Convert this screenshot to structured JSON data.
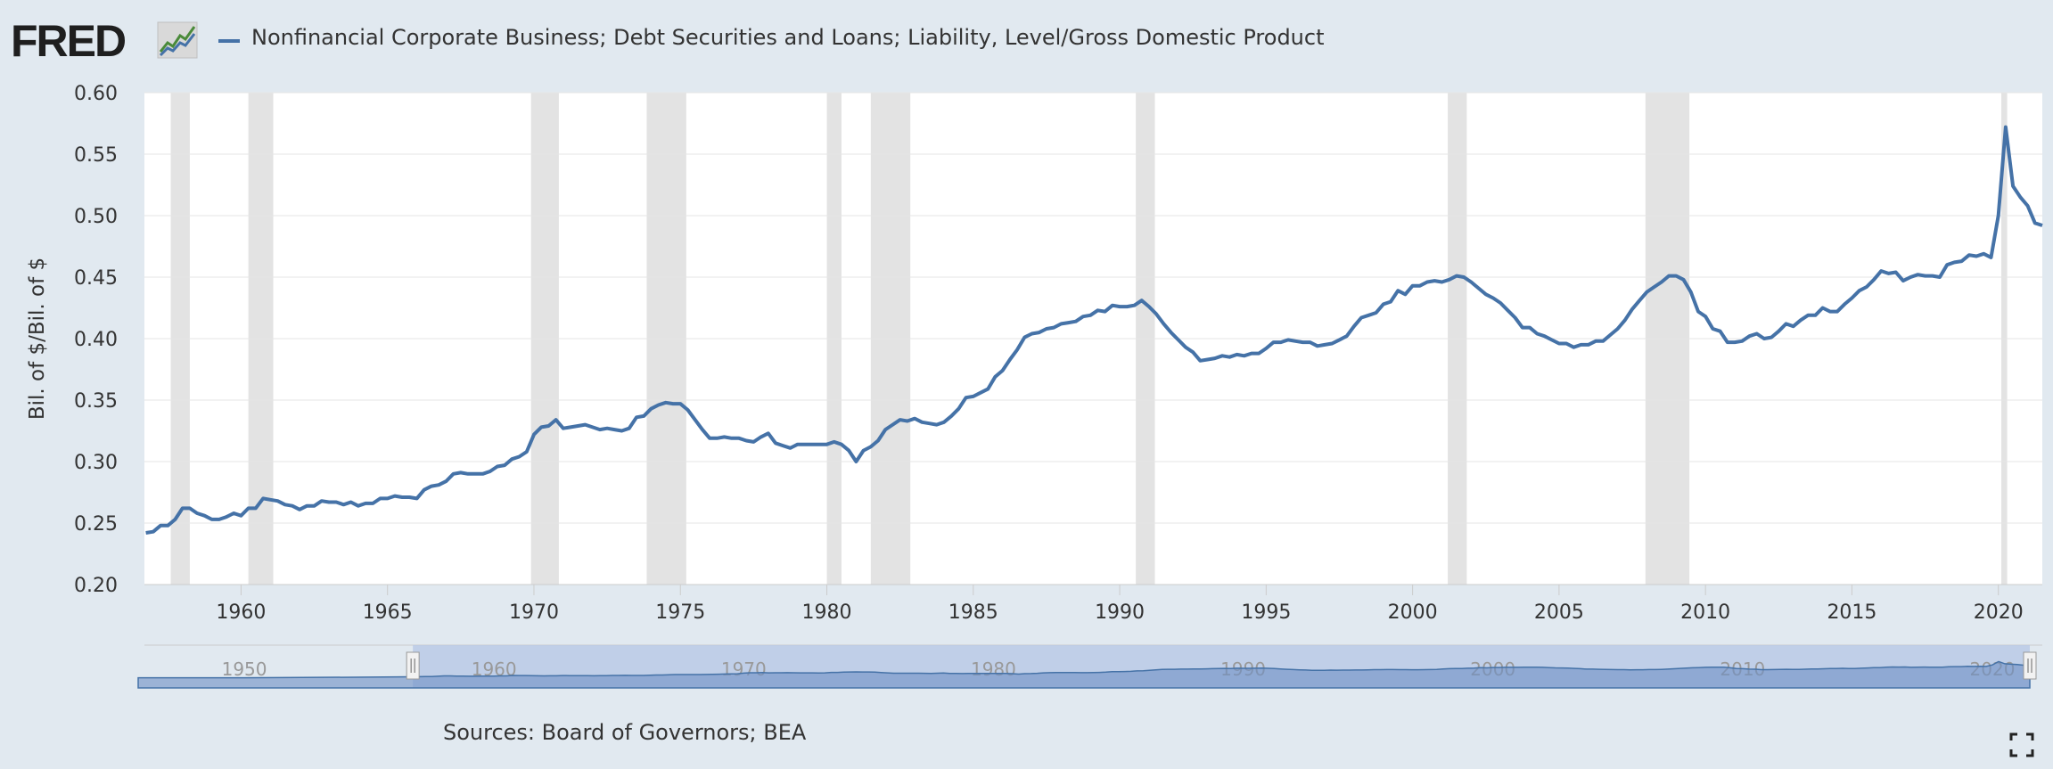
{
  "header": {
    "logo_text": "FRED",
    "series_title": "Nonfinancial Corporate Business; Debt Securities and Loans; Liability, Level/Gross Domestic Product"
  },
  "footer": {
    "sources": "Sources: Board of Governors; BEA"
  },
  "colors": {
    "line": "#4572a7",
    "recession": "#e3e3e3",
    "grid": "#e6e6e6",
    "navigator_fill": "#b8c8e6",
    "background": "#e1e9f0"
  },
  "chart_data": {
    "type": "line",
    "title": "",
    "xlabel": "",
    "ylabel": "Bil. of $/Bil. of $",
    "xlim": [
      1956.7,
      2021.5
    ],
    "ylim": [
      0.2,
      0.6
    ],
    "y_ticks": [
      "0.20",
      "0.25",
      "0.30",
      "0.35",
      "0.40",
      "0.45",
      "0.50",
      "0.55",
      "0.60"
    ],
    "x_ticks": [
      "1960",
      "1965",
      "1970",
      "1975",
      "1980",
      "1985",
      "1990",
      "1995",
      "2000",
      "2005",
      "2010",
      "2015",
      "2020"
    ],
    "grid": true,
    "legend": "top-left",
    "recessions": [
      [
        1957.6,
        1958.25
      ],
      [
        1960.25,
        1961.1
      ],
      [
        1969.9,
        1970.85
      ],
      [
        1973.85,
        1975.2
      ],
      [
        1980.0,
        1980.5
      ],
      [
        1981.5,
        1982.85
      ],
      [
        1990.55,
        1991.2
      ],
      [
        2001.2,
        2001.85
      ],
      [
        2007.95,
        2009.45
      ],
      [
        2020.1,
        2020.3
      ]
    ],
    "series": [
      {
        "name": "Nonfinancial Corporate Business; Debt Securities and Loans; Liability, Level/Gross Domestic Product",
        "points": [
          [
            1956.75,
            0.242
          ],
          [
            1957.0,
            0.243
          ],
          [
            1957.25,
            0.248
          ],
          [
            1957.5,
            0.248
          ],
          [
            1957.75,
            0.253
          ],
          [
            1958.0,
            0.262
          ],
          [
            1958.25,
            0.262
          ],
          [
            1958.5,
            0.258
          ],
          [
            1958.75,
            0.256
          ],
          [
            1959.0,
            0.253
          ],
          [
            1959.25,
            0.253
          ],
          [
            1959.5,
            0.255
          ],
          [
            1959.75,
            0.258
          ],
          [
            1960.0,
            0.256
          ],
          [
            1960.25,
            0.262
          ],
          [
            1960.5,
            0.262
          ],
          [
            1960.75,
            0.27
          ],
          [
            1961.0,
            0.269
          ],
          [
            1961.25,
            0.268
          ],
          [
            1961.5,
            0.265
          ],
          [
            1961.75,
            0.264
          ],
          [
            1962.0,
            0.261
          ],
          [
            1962.25,
            0.264
          ],
          [
            1962.5,
            0.264
          ],
          [
            1962.75,
            0.268
          ],
          [
            1963.0,
            0.267
          ],
          [
            1963.25,
            0.267
          ],
          [
            1963.5,
            0.265
          ],
          [
            1963.75,
            0.267
          ],
          [
            1964.0,
            0.264
          ],
          [
            1964.25,
            0.266
          ],
          [
            1964.5,
            0.266
          ],
          [
            1964.75,
            0.27
          ],
          [
            1965.0,
            0.27
          ],
          [
            1965.25,
            0.272
          ],
          [
            1965.5,
            0.271
          ],
          [
            1965.75,
            0.271
          ],
          [
            1966.0,
            0.27
          ],
          [
            1966.25,
            0.277
          ],
          [
            1966.5,
            0.28
          ],
          [
            1966.75,
            0.281
          ],
          [
            1967.0,
            0.284
          ],
          [
            1967.25,
            0.29
          ],
          [
            1967.5,
            0.291
          ],
          [
            1967.75,
            0.29
          ],
          [
            1968.0,
            0.29
          ],
          [
            1968.25,
            0.29
          ],
          [
            1968.5,
            0.292
          ],
          [
            1968.75,
            0.296
          ],
          [
            1969.0,
            0.297
          ],
          [
            1969.25,
            0.302
          ],
          [
            1969.5,
            0.304
          ],
          [
            1969.75,
            0.308
          ],
          [
            1970.0,
            0.322
          ],
          [
            1970.25,
            0.328
          ],
          [
            1970.5,
            0.329
          ],
          [
            1970.75,
            0.334
          ],
          [
            1971.0,
            0.327
          ],
          [
            1971.25,
            0.328
          ],
          [
            1971.5,
            0.329
          ],
          [
            1971.75,
            0.33
          ],
          [
            1972.0,
            0.328
          ],
          [
            1972.25,
            0.326
          ],
          [
            1972.5,
            0.327
          ],
          [
            1972.75,
            0.326
          ],
          [
            1973.0,
            0.325
          ],
          [
            1973.25,
            0.327
          ],
          [
            1973.5,
            0.336
          ],
          [
            1973.75,
            0.337
          ],
          [
            1974.0,
            0.343
          ],
          [
            1974.25,
            0.346
          ],
          [
            1974.5,
            0.348
          ],
          [
            1974.75,
            0.347
          ],
          [
            1975.0,
            0.347
          ],
          [
            1975.25,
            0.342
          ],
          [
            1975.5,
            0.334
          ],
          [
            1975.75,
            0.326
          ],
          [
            1976.0,
            0.319
          ],
          [
            1976.25,
            0.319
          ],
          [
            1976.5,
            0.32
          ],
          [
            1976.75,
            0.319
          ],
          [
            1977.0,
            0.319
          ],
          [
            1977.25,
            0.317
          ],
          [
            1977.5,
            0.316
          ],
          [
            1977.75,
            0.32
          ],
          [
            1978.0,
            0.323
          ],
          [
            1978.25,
            0.315
          ],
          [
            1978.5,
            0.313
          ],
          [
            1978.75,
            0.311
          ],
          [
            1979.0,
            0.314
          ],
          [
            1979.25,
            0.314
          ],
          [
            1979.5,
            0.314
          ],
          [
            1979.75,
            0.314
          ],
          [
            1980.0,
            0.314
          ],
          [
            1980.25,
            0.316
          ],
          [
            1980.5,
            0.314
          ],
          [
            1980.75,
            0.309
          ],
          [
            1981.0,
            0.3
          ],
          [
            1981.25,
            0.309
          ],
          [
            1981.5,
            0.312
          ],
          [
            1981.75,
            0.317
          ],
          [
            1982.0,
            0.326
          ],
          [
            1982.25,
            0.33
          ],
          [
            1982.5,
            0.334
          ],
          [
            1982.75,
            0.333
          ],
          [
            1983.0,
            0.335
          ],
          [
            1983.25,
            0.332
          ],
          [
            1983.5,
            0.331
          ],
          [
            1983.75,
            0.33
          ],
          [
            1984.0,
            0.332
          ],
          [
            1984.25,
            0.337
          ],
          [
            1984.5,
            0.343
          ],
          [
            1984.75,
            0.352
          ],
          [
            1985.0,
            0.353
          ],
          [
            1985.25,
            0.356
          ],
          [
            1985.5,
            0.359
          ],
          [
            1985.75,
            0.369
          ],
          [
            1986.0,
            0.374
          ],
          [
            1986.25,
            0.383
          ],
          [
            1986.5,
            0.391
          ],
          [
            1986.75,
            0.401
          ],
          [
            1987.0,
            0.404
          ],
          [
            1987.25,
            0.405
          ],
          [
            1987.5,
            0.408
          ],
          [
            1987.75,
            0.409
          ],
          [
            1988.0,
            0.412
          ],
          [
            1988.25,
            0.413
          ],
          [
            1988.5,
            0.414
          ],
          [
            1988.75,
            0.418
          ],
          [
            1989.0,
            0.419
          ],
          [
            1989.25,
            0.423
          ],
          [
            1989.5,
            0.422
          ],
          [
            1989.75,
            0.427
          ],
          [
            1990.0,
            0.426
          ],
          [
            1990.25,
            0.426
          ],
          [
            1990.5,
            0.427
          ],
          [
            1990.75,
            0.431
          ],
          [
            1991.0,
            0.426
          ],
          [
            1991.25,
            0.42
          ],
          [
            1991.5,
            0.412
          ],
          [
            1991.75,
            0.405
          ],
          [
            1992.0,
            0.399
          ],
          [
            1992.25,
            0.393
          ],
          [
            1992.5,
            0.389
          ],
          [
            1992.75,
            0.382
          ],
          [
            1993.0,
            0.383
          ],
          [
            1993.25,
            0.384
          ],
          [
            1993.5,
            0.386
          ],
          [
            1993.75,
            0.385
          ],
          [
            1994.0,
            0.387
          ],
          [
            1994.25,
            0.386
          ],
          [
            1994.5,
            0.388
          ],
          [
            1994.75,
            0.388
          ],
          [
            1995.0,
            0.392
          ],
          [
            1995.25,
            0.397
          ],
          [
            1995.5,
            0.397
          ],
          [
            1995.75,
            0.399
          ],
          [
            1996.0,
            0.398
          ],
          [
            1996.25,
            0.397
          ],
          [
            1996.5,
            0.397
          ],
          [
            1996.75,
            0.394
          ],
          [
            1997.0,
            0.395
          ],
          [
            1997.25,
            0.396
          ],
          [
            1997.5,
            0.399
          ],
          [
            1997.75,
            0.402
          ],
          [
            1998.0,
            0.41
          ],
          [
            1998.25,
            0.417
          ],
          [
            1998.5,
            0.419
          ],
          [
            1998.75,
            0.421
          ],
          [
            1999.0,
            0.428
          ],
          [
            1999.25,
            0.43
          ],
          [
            1999.5,
            0.439
          ],
          [
            1999.75,
            0.436
          ],
          [
            2000.0,
            0.443
          ],
          [
            2000.25,
            0.443
          ],
          [
            2000.5,
            0.446
          ],
          [
            2000.75,
            0.447
          ],
          [
            2001.0,
            0.446
          ],
          [
            2001.25,
            0.448
          ],
          [
            2001.5,
            0.451
          ],
          [
            2001.75,
            0.45
          ],
          [
            2002.0,
            0.446
          ],
          [
            2002.25,
            0.441
          ],
          [
            2002.5,
            0.436
          ],
          [
            2002.75,
            0.433
          ],
          [
            2003.0,
            0.429
          ],
          [
            2003.25,
            0.423
          ],
          [
            2003.5,
            0.417
          ],
          [
            2003.75,
            0.409
          ],
          [
            2004.0,
            0.409
          ],
          [
            2004.25,
            0.404
          ],
          [
            2004.5,
            0.402
          ],
          [
            2004.75,
            0.399
          ],
          [
            2005.0,
            0.396
          ],
          [
            2005.25,
            0.396
          ],
          [
            2005.5,
            0.393
          ],
          [
            2005.75,
            0.395
          ],
          [
            2006.0,
            0.395
          ],
          [
            2006.25,
            0.398
          ],
          [
            2006.5,
            0.398
          ],
          [
            2006.75,
            0.403
          ],
          [
            2007.0,
            0.408
          ],
          [
            2007.25,
            0.415
          ],
          [
            2007.5,
            0.424
          ],
          [
            2007.75,
            0.431
          ],
          [
            2008.0,
            0.438
          ],
          [
            2008.25,
            0.442
          ],
          [
            2008.5,
            0.446
          ],
          [
            2008.75,
            0.451
          ],
          [
            2009.0,
            0.451
          ],
          [
            2009.25,
            0.448
          ],
          [
            2009.5,
            0.438
          ],
          [
            2009.75,
            0.422
          ],
          [
            2010.0,
            0.418
          ],
          [
            2010.25,
            0.408
          ],
          [
            2010.5,
            0.406
          ],
          [
            2010.75,
            0.397
          ],
          [
            2011.0,
            0.397
          ],
          [
            2011.25,
            0.398
          ],
          [
            2011.5,
            0.402
          ],
          [
            2011.75,
            0.404
          ],
          [
            2012.0,
            0.4
          ],
          [
            2012.25,
            0.401
          ],
          [
            2012.5,
            0.406
          ],
          [
            2012.75,
            0.412
          ],
          [
            2013.0,
            0.41
          ],
          [
            2013.25,
            0.415
          ],
          [
            2013.5,
            0.419
          ],
          [
            2013.75,
            0.419
          ],
          [
            2014.0,
            0.425
          ],
          [
            2014.25,
            0.422
          ],
          [
            2014.5,
            0.422
          ],
          [
            2014.75,
            0.428
          ],
          [
            2015.0,
            0.433
          ],
          [
            2015.25,
            0.439
          ],
          [
            2015.5,
            0.442
          ],
          [
            2015.75,
            0.448
          ],
          [
            2016.0,
            0.455
          ],
          [
            2016.25,
            0.453
          ],
          [
            2016.5,
            0.454
          ],
          [
            2016.75,
            0.447
          ],
          [
            2017.0,
            0.45
          ],
          [
            2017.25,
            0.452
          ],
          [
            2017.5,
            0.451
          ],
          [
            2017.75,
            0.451
          ],
          [
            2018.0,
            0.45
          ],
          [
            2018.25,
            0.46
          ],
          [
            2018.5,
            0.462
          ],
          [
            2018.75,
            0.463
          ],
          [
            2019.0,
            0.468
          ],
          [
            2019.25,
            0.467
          ],
          [
            2019.5,
            0.469
          ],
          [
            2019.75,
            0.466
          ],
          [
            2020.0,
            0.5
          ],
          [
            2020.25,
            0.572
          ],
          [
            2020.5,
            0.524
          ],
          [
            2020.75,
            0.515
          ],
          [
            2021.0,
            0.508
          ],
          [
            2021.25,
            0.494
          ],
          [
            2021.5,
            0.492
          ]
        ]
      }
    ],
    "navigator": {
      "x_ticks": [
        "1950",
        "1960",
        "1970",
        "1980",
        "1990",
        "2000",
        "2010",
        "2020"
      ],
      "range_start": 1956.75,
      "range_end": 2021.5,
      "data_start": 1945.75,
      "data_end": 2021.5
    }
  }
}
